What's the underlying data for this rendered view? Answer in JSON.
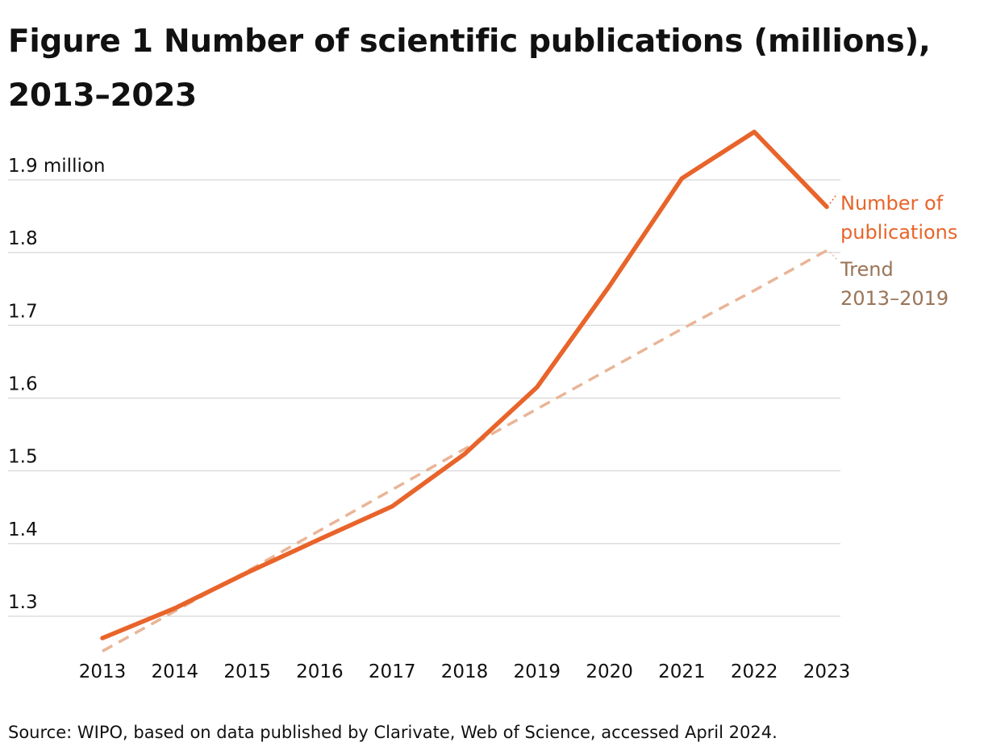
{
  "header": {
    "title": "Figure 1 Number of scientific publications (millions), 2013–2023"
  },
  "footer": {
    "source": "Source: WIPO, based on data published by Clarivate, Web of Science, accessed April 2024."
  },
  "colors": {
    "publications": "#e8642a",
    "trend": "#e9b597",
    "trend_label": "#9a7457",
    "gridline": "#dddddd",
    "text": "#111111"
  },
  "chart_data": {
    "type": "line",
    "title": "Figure 1 Number of scientific publications (millions), 2013–2023",
    "xlabel": "",
    "ylabel": "",
    "x": [
      2013,
      2014,
      2015,
      2016,
      2017,
      2018,
      2019,
      2020,
      2021,
      2022,
      2023
    ],
    "x_tick_labels": [
      "2013",
      "2014",
      "2015",
      "2016",
      "2017",
      "2018",
      "2019",
      "2020",
      "2021",
      "2022",
      "2023"
    ],
    "y_ticks": [
      1.3,
      1.4,
      1.5,
      1.6,
      1.7,
      1.8,
      1.9
    ],
    "y_tick_labels": [
      "1.3",
      "1.4",
      "1.5",
      "1.6",
      "1.7",
      "1.8",
      "1.9 million"
    ],
    "ylim": [
      1.24,
      1.97
    ],
    "grid": true,
    "legend": "direct labels at right end of lines",
    "series": [
      {
        "name": "Number of publications",
        "label_lines": [
          "Number of",
          "publications"
        ],
        "style": "solid",
        "values": [
          1.27,
          1.311,
          1.36,
          1.406,
          1.451,
          1.523,
          1.615,
          1.754,
          1.902,
          1.966,
          1.863
        ]
      },
      {
        "name": "Trend 2013–2019",
        "label_lines": [
          "Trend",
          "2013–2019"
        ],
        "style": "dashed",
        "values": [
          1.252,
          1.307,
          1.362,
          1.418,
          1.474,
          1.53,
          1.585,
          1.64,
          1.695,
          1.748,
          1.803
        ]
      }
    ]
  }
}
